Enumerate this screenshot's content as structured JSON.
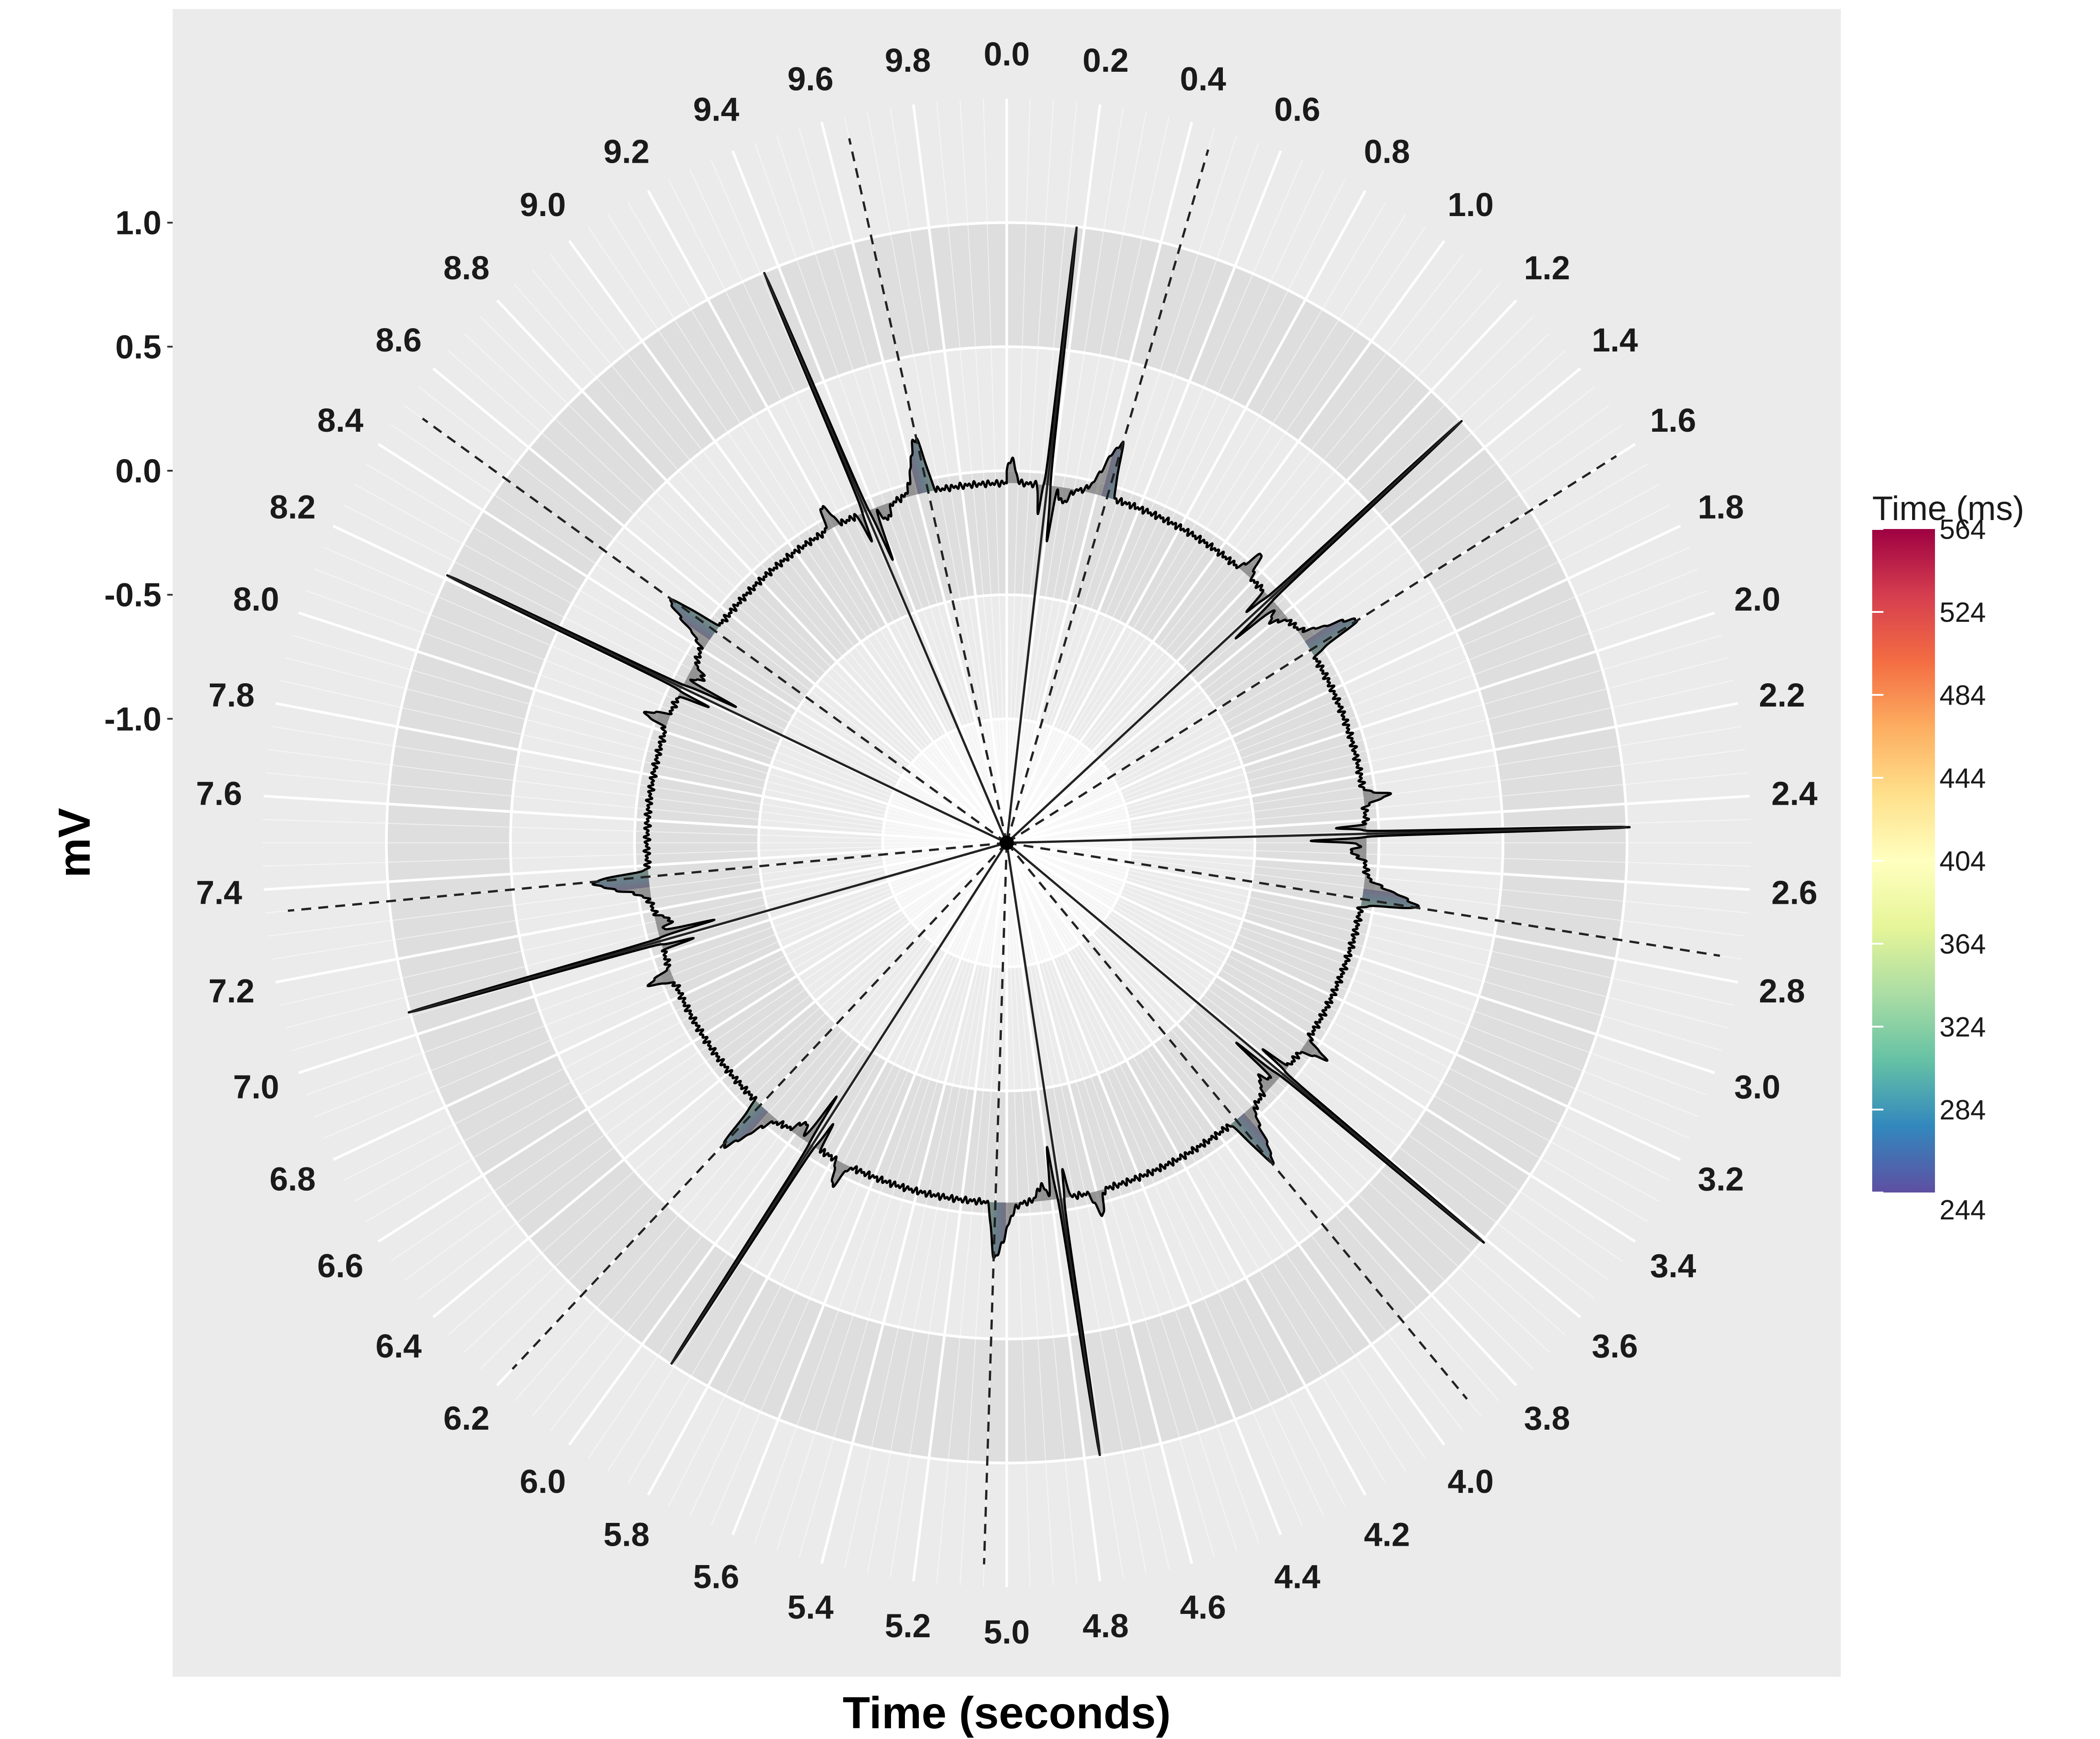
{
  "chart_data": {
    "type": "polar-line",
    "xlabel": "Time (seconds)",
    "ylabel": "mV",
    "theta_range": [
      0,
      10
    ],
    "theta_ticks": [
      "0.0",
      "0.2",
      "0.4",
      "0.6",
      "0.8",
      "1.0",
      "1.2",
      "1.4",
      "1.6",
      "1.8",
      "2.0",
      "2.2",
      "2.4",
      "2.6",
      "2.8",
      "3.0",
      "3.2",
      "3.4",
      "3.6",
      "3.8",
      "4.0",
      "4.2",
      "4.4",
      "4.6",
      "4.8",
      "5.0",
      "5.2",
      "5.4",
      "5.6",
      "5.8",
      "6.0",
      "6.2",
      "6.4",
      "6.6",
      "6.8",
      "7.0",
      "7.2",
      "7.4",
      "7.6",
      "7.8",
      "8.0",
      "8.2",
      "8.4",
      "8.6",
      "8.8",
      "9.0",
      "9.2",
      "9.4",
      "9.6",
      "9.8"
    ],
    "r_range": [
      -1.5,
      1.5
    ],
    "r_ticks": [
      {
        "value": 1.0,
        "label": "1.0"
      },
      {
        "value": 0.5,
        "label": "0.5"
      },
      {
        "value": 0.0,
        "label": "0.0"
      },
      {
        "value": -0.5,
        "label": "-0.5"
      },
      {
        "value": -1.0,
        "label": "-1.0"
      }
    ],
    "baseline_mV": -0.05,
    "r_peaks_s": [
      0.18,
      1.31,
      2.46,
      3.61,
      4.76,
      5.91,
      7.06,
      8.21,
      9.36
    ],
    "t_waves_s": [
      0.45,
      1.6,
      2.75,
      3.9,
      5.05,
      6.2,
      7.35,
      8.5,
      9.65
    ],
    "r_peak_mV": 1.0,
    "t_wave_peak_mV": 0.17,
    "colorbar": {
      "title": "Time (ms)",
      "min": 244,
      "max": 564,
      "ticks": [
        "564",
        "524",
        "484",
        "444",
        "404",
        "364",
        "324",
        "284",
        "244"
      ],
      "colors": [
        "#5E4FA2",
        "#3288BD",
        "#66C2A5",
        "#ABDDA4",
        "#E6F598",
        "#FFFFBF",
        "#FEE08B",
        "#FDAE61",
        "#F46D43",
        "#D53E4F",
        "#9E0142"
      ]
    },
    "grid": true,
    "legend_position": "right"
  },
  "colors": {
    "panel_background": "#EBEBEB",
    "band_dark": "#DEDEDE",
    "band_light": "#EBEBEB",
    "inner_band": "#F5F5F5",
    "grid_line": "#FFFFFF",
    "ecg_fill": "#7A7A7A",
    "ecg_line": "#000000",
    "solid_marker": "#222222",
    "dashed_marker": "#222222"
  }
}
